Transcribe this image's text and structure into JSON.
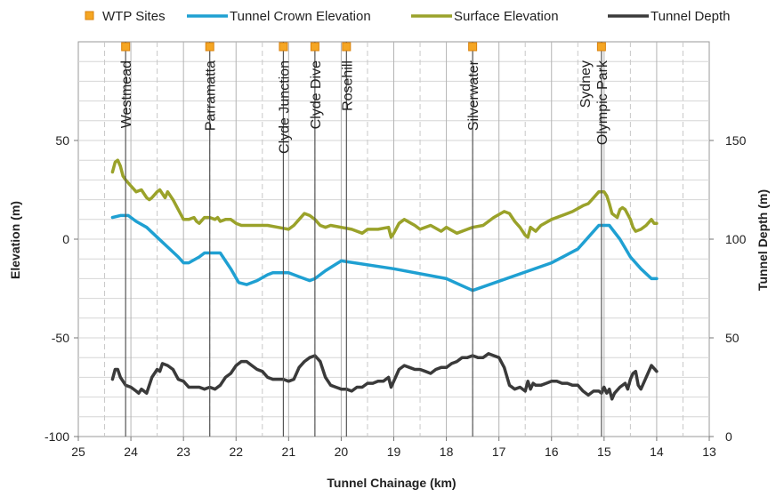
{
  "chart_data": {
    "type": "line",
    "xlabel": "Tunnel Chainage (km)",
    "ylabel": "Elevation (m)",
    "y2label": "Tunnel Depth (m)",
    "x_reversed": true,
    "xlim": [
      25,
      13
    ],
    "ylim": [
      -100,
      100
    ],
    "y2lim": [
      0,
      200
    ],
    "x_ticks": [
      "25",
      "24",
      "23",
      "22",
      "21",
      "20",
      "19",
      "18",
      "17",
      "16",
      "15",
      "14",
      "13"
    ],
    "y_ticks": [
      "-100",
      "-50",
      "0",
      "50"
    ],
    "y2_ticks": [
      "0",
      "50",
      "100",
      "150"
    ],
    "grid": true,
    "legend_position": "top",
    "legend": [
      {
        "label": "WTP Sites",
        "kind": "marker",
        "color": "#F5A623"
      },
      {
        "label": "Tunnel Crown Elevation",
        "kind": "line",
        "color": "#1FA0D2"
      },
      {
        "label": "Surface Elevation",
        "kind": "line",
        "color": "#9AA22A"
      },
      {
        "label": "Tunnel Depth",
        "kind": "line",
        "color": "#3A3A3A"
      }
    ],
    "sites": [
      {
        "name": "Westmead",
        "x": 24.1
      },
      {
        "name": "Parramatta",
        "x": 22.5
      },
      {
        "name": "Clyde Junction",
        "x": 21.1
      },
      {
        "name": "Clyde Dive",
        "x": 20.5
      },
      {
        "name": "Rosehill",
        "x": 19.9
      },
      {
        "name": "Silverwater",
        "x": 17.5
      },
      {
        "name": "Sydney\nOlympic Park",
        "x": 15.05
      }
    ],
    "series": [
      {
        "name": "Tunnel Crown Elevation",
        "axis": "left",
        "color": "#1FA0D2",
        "x": [
          24.35,
          24.2,
          24.05,
          23.9,
          23.7,
          23.5,
          23.3,
          23.1,
          23.0,
          22.9,
          22.7,
          22.6,
          22.4,
          22.3,
          22.1,
          21.95,
          21.8,
          21.6,
          21.4,
          21.3,
          21.0,
          20.8,
          20.6,
          20.5,
          20.3,
          20.0,
          19.0,
          18.0,
          17.5,
          16.0,
          15.5,
          15.3,
          15.1,
          14.9,
          14.7,
          14.5,
          14.3,
          14.1,
          14.0
        ],
        "y": [
          11,
          12,
          12,
          9,
          6,
          1,
          -4,
          -9,
          -12,
          -12,
          -9,
          -7,
          -7,
          -7,
          -15,
          -22,
          -23,
          -21,
          -18,
          -17,
          -17,
          -19,
          -21,
          -20,
          -16,
          -11,
          -15,
          -20,
          -26,
          -12,
          -5,
          1,
          7,
          7,
          0,
          -9,
          -15,
          -20,
          -20
        ]
      },
      {
        "name": "Surface Elevation",
        "axis": "left",
        "color": "#9AA22A",
        "x": [
          24.35,
          24.3,
          24.25,
          24.2,
          24.15,
          24.1,
          24.0,
          23.9,
          23.8,
          23.7,
          23.65,
          23.6,
          23.5,
          23.45,
          23.4,
          23.35,
          23.3,
          23.25,
          23.2,
          23.1,
          23.0,
          22.9,
          22.8,
          22.75,
          22.7,
          22.6,
          22.5,
          22.4,
          22.35,
          22.3,
          22.2,
          22.1,
          22.0,
          21.9,
          21.8,
          21.6,
          21.4,
          21.2,
          21.0,
          20.9,
          20.8,
          20.7,
          20.6,
          20.5,
          20.4,
          20.3,
          20.2,
          20.0,
          19.8,
          19.6,
          19.5,
          19.4,
          19.3,
          19.1,
          19.05,
          19.0,
          18.9,
          18.8,
          18.6,
          18.5,
          18.3,
          18.1,
          18.0,
          17.8,
          17.6,
          17.5,
          17.3,
          17.1,
          16.9,
          16.8,
          16.7,
          16.6,
          16.5,
          16.45,
          16.4,
          16.3,
          16.2,
          16.0,
          15.8,
          15.6,
          15.4,
          15.3,
          15.2,
          15.1,
          15.0,
          14.95,
          14.9,
          14.85,
          14.8,
          14.75,
          14.7,
          14.65,
          14.6,
          14.5,
          14.45,
          14.4,
          14.3,
          14.2,
          14.1,
          14.05,
          14.0
        ],
        "y": [
          34,
          39,
          40,
          37,
          32,
          30,
          27,
          24,
          25,
          21,
          20,
          21,
          24,
          25,
          23,
          21,
          24,
          22,
          20,
          15,
          10,
          10,
          11,
          9,
          8,
          11,
          11,
          10,
          11,
          9,
          10,
          10,
          8,
          7,
          7,
          7,
          7,
          6,
          5,
          7,
          10,
          13,
          12,
          10,
          7,
          6,
          7,
          6,
          5,
          3,
          5,
          5,
          5,
          6,
          1,
          3,
          8,
          10,
          7,
          5,
          7,
          4,
          6,
          3,
          5,
          6,
          7,
          11,
          14,
          13,
          9,
          6,
          2,
          1,
          6,
          4,
          7,
          10,
          12,
          14,
          17,
          18,
          21,
          24,
          24,
          22,
          18,
          13,
          12,
          11,
          15,
          16,
          15,
          10,
          6,
          4,
          5,
          7,
          10,
          8,
          8
        ]
      },
      {
        "name": "Tunnel Depth",
        "axis": "right",
        "color": "#3A3A3A",
        "x": [
          24.35,
          24.3,
          24.25,
          24.2,
          24.1,
          24.0,
          23.9,
          23.85,
          23.8,
          23.7,
          23.6,
          23.5,
          23.45,
          23.4,
          23.3,
          23.2,
          23.1,
          23.0,
          22.9,
          22.8,
          22.7,
          22.6,
          22.5,
          22.4,
          22.3,
          22.2,
          22.1,
          22.0,
          21.9,
          21.8,
          21.7,
          21.6,
          21.5,
          21.4,
          21.3,
          21.2,
          21.1,
          21.0,
          20.9,
          20.8,
          20.7,
          20.6,
          20.5,
          20.4,
          20.3,
          20.2,
          20.1,
          20.0,
          19.9,
          19.8,
          19.7,
          19.6,
          19.5,
          19.4,
          19.3,
          19.2,
          19.1,
          19.05,
          19.0,
          18.9,
          18.8,
          18.7,
          18.6,
          18.5,
          18.4,
          18.3,
          18.2,
          18.1,
          18.0,
          17.9,
          17.8,
          17.7,
          17.6,
          17.5,
          17.4,
          17.3,
          17.2,
          17.1,
          17.0,
          16.9,
          16.8,
          16.7,
          16.6,
          16.5,
          16.45,
          16.4,
          16.35,
          16.3,
          16.2,
          16.1,
          16.0,
          15.9,
          15.8,
          15.7,
          15.6,
          15.5,
          15.4,
          15.3,
          15.2,
          15.1,
          15.05,
          15.0,
          14.95,
          14.9,
          14.85,
          14.8,
          14.7,
          14.6,
          14.55,
          14.5,
          14.45,
          14.4,
          14.35,
          14.3,
          14.2,
          14.1,
          14.0
        ],
        "y": [
          29,
          34,
          34,
          30,
          26,
          25,
          23,
          22,
          24,
          22,
          30,
          34,
          33,
          37,
          36,
          34,
          29,
          28,
          25,
          25,
          25,
          24,
          25,
          24,
          26,
          30,
          32,
          36,
          38,
          38,
          36,
          34,
          33,
          30,
          29,
          29,
          29,
          28,
          29,
          35,
          38,
          40,
          41,
          38,
          30,
          26,
          25,
          24,
          24,
          23,
          25,
          25,
          27,
          27,
          28,
          28,
          30,
          25,
          28,
          34,
          36,
          35,
          34,
          34,
          33,
          32,
          34,
          35,
          35,
          37,
          38,
          40,
          40,
          41,
          40,
          40,
          42,
          41,
          40,
          35,
          26,
          24,
          25,
          23,
          28,
          24,
          27,
          26,
          26,
          27,
          28,
          28,
          27,
          27,
          26,
          26,
          23,
          21,
          23,
          23,
          22,
          25,
          22,
          24,
          19,
          22,
          25,
          27,
          24,
          29,
          32,
          33,
          26,
          24,
          30,
          36,
          33
        ]
      }
    ]
  }
}
